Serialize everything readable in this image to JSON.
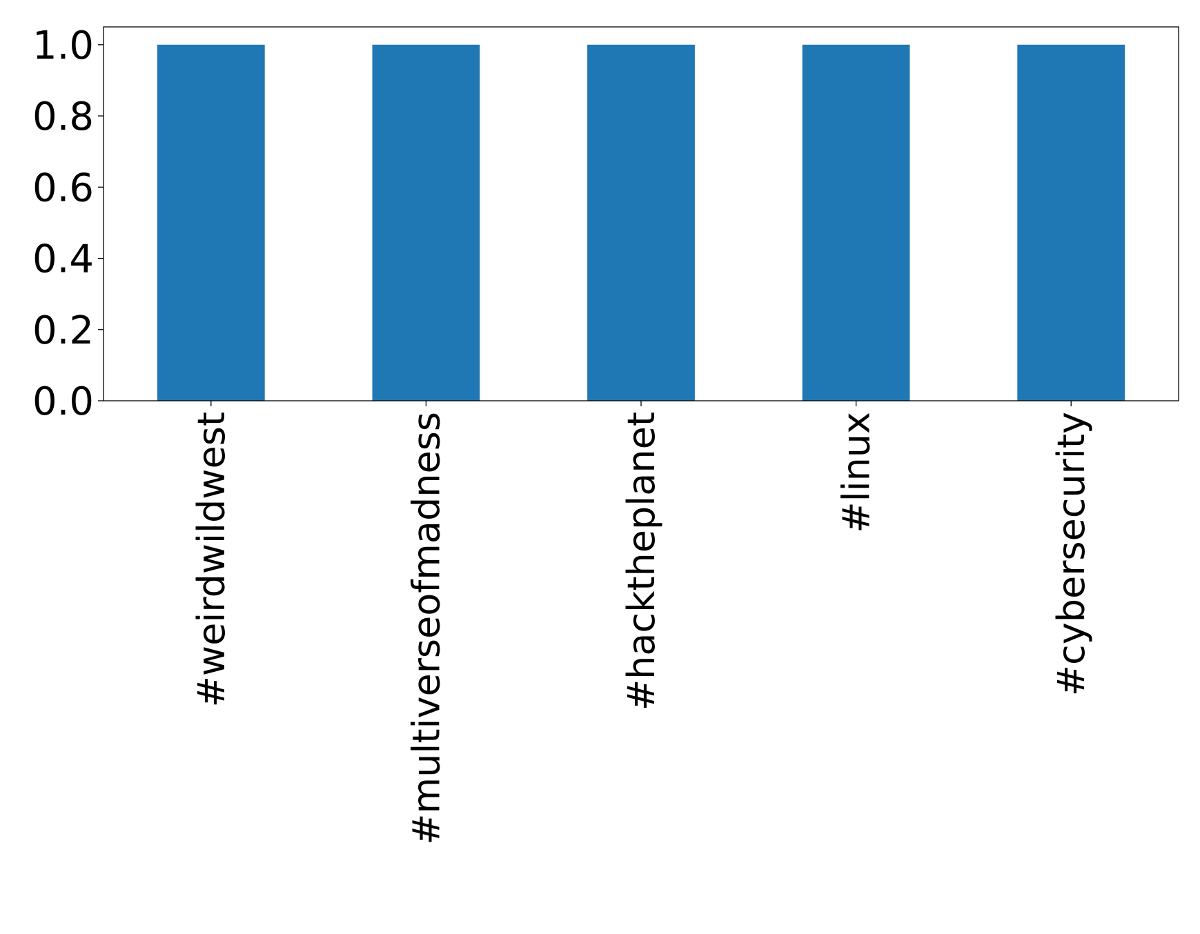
{
  "chart_data": {
    "type": "bar",
    "title": "",
    "xlabel": "",
    "ylabel": "",
    "categories": [
      "#weirdwildwest",
      "#multiverseofmadness",
      "#hacktheplanet",
      "#linux",
      "#cybersecurity"
    ],
    "values": [
      1,
      1,
      1,
      1,
      1
    ],
    "ylim": [
      0,
      1.05
    ],
    "yticks": [
      "0.0",
      "0.2",
      "0.4",
      "0.6",
      "0.8",
      "1.0"
    ],
    "grid": false,
    "legend": "none",
    "bar_color": "#1f77b4"
  }
}
